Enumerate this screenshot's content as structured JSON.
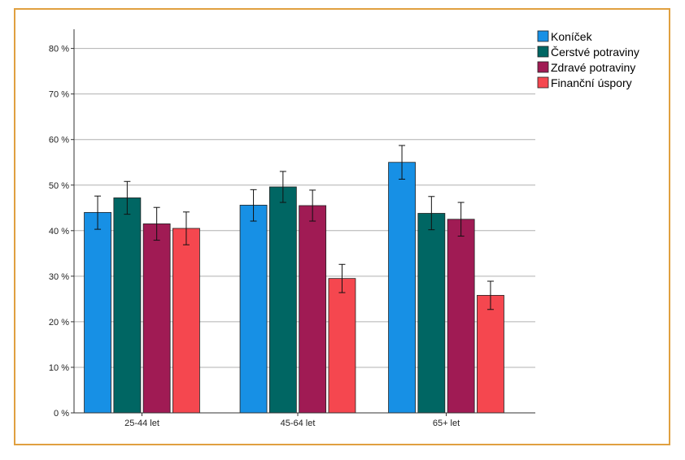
{
  "chart_data": {
    "type": "bar",
    "categories": [
      "25-44 let",
      "45-64 let",
      "65+ let"
    ],
    "series": [
      {
        "name": "Koníček",
        "color": "#1790e5",
        "values": [
          44,
          45.6,
          55
        ],
        "error_low": [
          40.3,
          42.1,
          51.3
        ],
        "error_high": [
          47.6,
          49,
          58.7
        ]
      },
      {
        "name": "Čerstvé potraviny",
        "color": "#006663",
        "values": [
          47.2,
          49.6,
          43.8
        ],
        "error_low": [
          43.6,
          46.2,
          40.2
        ],
        "error_high": [
          50.8,
          53,
          47.5
        ]
      },
      {
        "name": "Zdravé potraviny",
        "color": "#a01b54",
        "values": [
          41.5,
          45.5,
          42.5
        ],
        "error_low": [
          37.9,
          42.1,
          38.8
        ],
        "error_high": [
          45.1,
          48.9,
          46.2
        ]
      },
      {
        "name": "Finanční úspory",
        "color": "#f5474f",
        "values": [
          40.5,
          29.5,
          25.8
        ],
        "error_low": [
          36.9,
          26.4,
          22.7
        ],
        "error_high": [
          44.1,
          32.6,
          28.9
        ]
      }
    ],
    "y_ticks": [
      "0 %",
      "10 %",
      "20 %",
      "30 %",
      "40 %",
      "50 %",
      "60 %",
      "70 %",
      "80 %"
    ],
    "ylim": [
      0,
      85
    ],
    "grid": true,
    "legend_position": "top-right"
  }
}
